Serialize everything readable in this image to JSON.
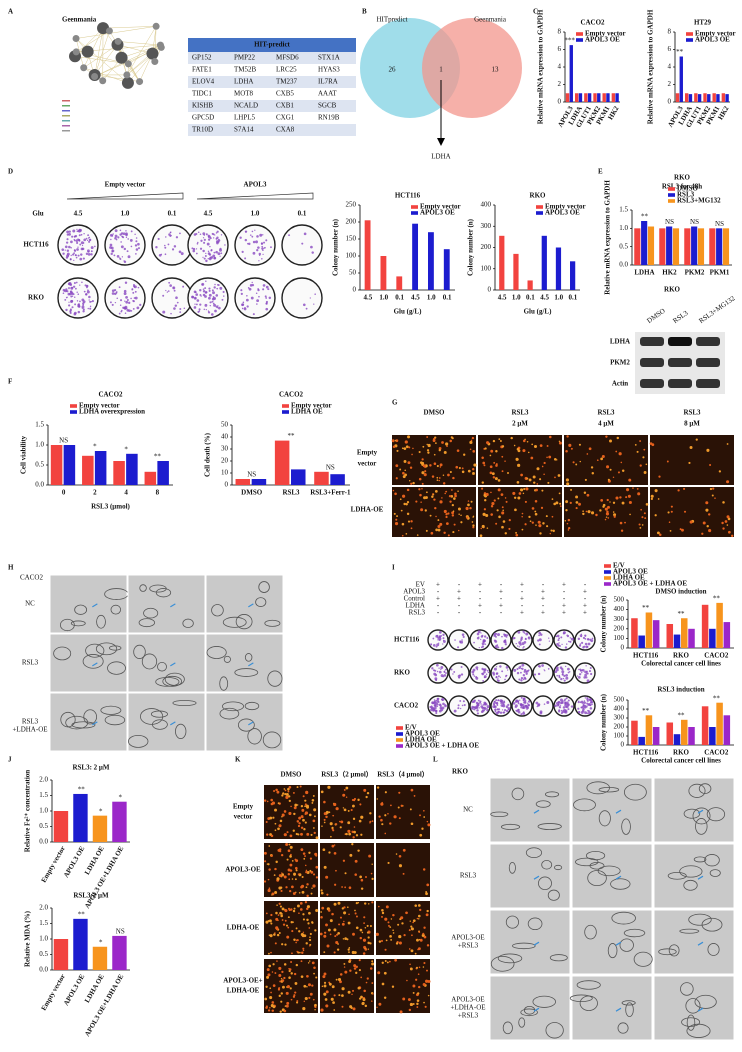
{
  "panel_letters": [
    "A",
    "B",
    "C",
    "D",
    "E",
    "F",
    "G",
    "H",
    "I",
    "J",
    "K",
    "L"
  ],
  "network": {
    "title": "Geenmania"
  },
  "table": {
    "title": "HIT-predict",
    "rows": [
      [
        "GP152",
        "PMP22",
        "MFSD6",
        "STX1A"
      ],
      [
        "FATE1",
        "TM52B",
        "LRC25",
        "HYAS3"
      ],
      [
        "ELOV4",
        "LDHA",
        "TM237",
        "IL7RA"
      ],
      [
        "TIDC1",
        "MOT8",
        "CXB5",
        "AAAT"
      ],
      [
        "KISHB",
        "NCALD",
        "CXB1",
        "SGCB"
      ],
      [
        "GPC5D",
        "LHPL5",
        "CXG1",
        "RN19B"
      ],
      [
        "TR10D",
        "S7A14",
        "CXA8"
      ]
    ]
  },
  "venn": {
    "left_label": "HITpredict",
    "right_label": "Geenmania",
    "left_only": "26",
    "both": "1",
    "right_only": "13",
    "gene": "LDHA"
  },
  "colony_plates": {
    "groups": [
      "Empty vector",
      "APOL3"
    ],
    "glu_label": "Glu",
    "glu_levels": [
      "4.5",
      "1.0",
      "0.1"
    ],
    "cell_lines": [
      "HCT116",
      "RKO"
    ]
  },
  "western_blot": {
    "title": "RKO",
    "lanes": [
      "DMSO",
      "RSL3",
      "RSL3+MG132"
    ],
    "proteins": [
      "LDHA",
      "PKM2",
      "Actin"
    ]
  },
  "fluorescence_g": {
    "columns": [
      [
        "DMSO"
      ],
      [
        "RSL3",
        "2 μM"
      ],
      [
        "RSL3",
        "4 μM"
      ],
      [
        "RSL3",
        "8 μM"
      ]
    ],
    "rows": [
      [
        "Empty",
        "vector"
      ],
      [
        "LDHA-OE"
      ]
    ]
  },
  "em_h": {
    "cell_line": "CACO2",
    "rows": [
      [
        "NC"
      ],
      [
        "RSL3"
      ],
      [
        "RSL3",
        "+LDHA-OE"
      ]
    ]
  },
  "colony_matrix_i": {
    "conditions": [
      {
        "name": "EV",
        "signs": [
          "+",
          "-",
          "+",
          "-",
          "+",
          "-",
          "+",
          "-"
        ]
      },
      {
        "name": "APOL3",
        "signs": [
          "-",
          "+",
          "-",
          "+",
          "-",
          "+",
          "-",
          "+"
        ]
      },
      {
        "name": "Control",
        "signs": [
          "+",
          "+",
          "-",
          "-",
          "+",
          "+",
          "-",
          "-"
        ]
      },
      {
        "name": "LDHA",
        "signs": [
          "-",
          "-",
          "+",
          "+",
          "-",
          "-",
          "+",
          "+"
        ]
      },
      {
        "name": "RSL3",
        "signs": [
          "-",
          "-",
          "-",
          "-",
          "+",
          "+",
          "+",
          "+"
        ]
      }
    ],
    "cell_lines": [
      "HCT116",
      "RKO",
      "CACO2"
    ]
  },
  "fluorescence_k": {
    "columns": [
      "DMSO",
      "RSL3（2 μmol）",
      "RSL3（4 μmol）"
    ],
    "rows": [
      [
        "Empty",
        "vector"
      ],
      [
        "APOL3-OE"
      ],
      [
        "LDHA-OE"
      ],
      [
        "APOL3-OE+",
        "LDHA-OE"
      ]
    ]
  },
  "em_l": {
    "cell_line": "RKO",
    "rows": [
      [
        "NC"
      ],
      [
        "RSL3"
      ],
      [
        "APOL3-OE",
        "+RSL3"
      ],
      [
        "APOL3-OE",
        "+LDHA-OE",
        "+RSL3"
      ]
    ]
  },
  "chart_data": [
    {
      "type": "bar",
      "title": "CACO2",
      "y_label": "Relative mRNA expression to GAPDH",
      "categories": [
        "APOL3",
        "LDHA",
        "GLUT1",
        "PKM2",
        "PKM1",
        "HK2"
      ],
      "series": [
        {
          "name": "Empty vector",
          "color": "#f2433f",
          "values": [
            1,
            1,
            1,
            1,
            1,
            1
          ]
        },
        {
          "name": "APOL3 OE",
          "color": "#1c1ccf",
          "values": [
            6.5,
            1,
            1,
            1,
            1,
            1
          ]
        }
      ],
      "ylim": [
        0,
        8
      ],
      "yticks": [
        0,
        2,
        4,
        6,
        8
      ],
      "annotations": [
        "***",
        null,
        null,
        null,
        null,
        null
      ],
      "legend": "upper right"
    },
    {
      "type": "bar",
      "title": "HT29",
      "y_label": "Relative mRNA expression to GAPDH",
      "categories": [
        "APOL3",
        "LDHA",
        "GLUT1",
        "PKM2",
        "PKM1",
        "HK2"
      ],
      "series": [
        {
          "name": "Empty vector",
          "color": "#f2433f",
          "values": [
            1,
            1,
            1,
            1,
            1,
            1
          ]
        },
        {
          "name": "APOL3 OE",
          "color": "#1c1ccf",
          "values": [
            5.2,
            0.9,
            0.9,
            0.9,
            0.9,
            0.9
          ]
        }
      ],
      "ylim": [
        0,
        8
      ],
      "yticks": [
        0,
        2,
        4,
        6,
        8
      ],
      "annotations": [
        "**",
        null,
        null,
        null,
        null,
        null
      ],
      "legend": "upper right"
    },
    {
      "type": "bar",
      "title": "HCT116",
      "y_label": "Colony number (n)",
      "x_label": "Glu (g/L)",
      "categories": [
        "4.5",
        "1.0",
        "0.1",
        "4.5",
        "1.0",
        "0.1"
      ],
      "series": [
        {
          "name": "Empty vector",
          "color": "#f2433f",
          "values": [
            205,
            100,
            40,
            null,
            null,
            null
          ]
        },
        {
          "name": "APOL3 OE",
          "color": "#1c1ccf",
          "values": [
            null,
            null,
            null,
            195,
            170,
            120
          ]
        }
      ],
      "ylim": [
        0,
        250
      ],
      "yticks": [
        0,
        50,
        100,
        150,
        200,
        250
      ],
      "legend": "upper right"
    },
    {
      "type": "bar",
      "title": "RKO",
      "y_label": "Colony number (n)",
      "x_label": "Glu (g/L)",
      "categories": [
        "4.5",
        "1.0",
        "0.1",
        "4.5",
        "1.0",
        "0.1"
      ],
      "series": [
        {
          "name": "Empty vector",
          "color": "#f2433f",
          "values": [
            255,
            170,
            45,
            null,
            null,
            null
          ]
        },
        {
          "name": "APOL3 OE",
          "color": "#1c1ccf",
          "values": [
            null,
            null,
            null,
            255,
            200,
            135
          ]
        }
      ],
      "ylim": [
        0,
        400
      ],
      "yticks": [
        0,
        100,
        200,
        300,
        400
      ],
      "legend": "upper right"
    },
    {
      "type": "bar",
      "title": "RKO",
      "subtitle": "RSL3 for 48h",
      "y_label": "Relative mRNA expression to GAPDH",
      "categories": [
        "LDHA",
        "HK2",
        "PKM2",
        "PKM1"
      ],
      "series": [
        {
          "name": "DMSO",
          "color": "#f2433f",
          "values": [
            1,
            1,
            1,
            1
          ]
        },
        {
          "name": "RSL3",
          "color": "#1c1ccf",
          "values": [
            1.2,
            1.05,
            1.05,
            1.0
          ]
        },
        {
          "name": "RSL3+MG132",
          "color": "#f7941d",
          "values": [
            1.05,
            1.0,
            1.0,
            1.0
          ]
        }
      ],
      "ylim": [
        0,
        1.5
      ],
      "yticks": [
        {
          "value": 0,
          "label": "0.0"
        },
        {
          "value": 0.5,
          "label": "0.5"
        },
        {
          "value": 1,
          "label": "1.0"
        },
        {
          "value": 1.5,
          "label": "1.5"
        }
      ],
      "annotations": [
        "**",
        "NS",
        "NS",
        "NS"
      ],
      "legend": "upper left"
    },
    {
      "type": "bar",
      "title": "CACO2",
      "y_label": "Cell viability",
      "x_label": "RSL3 (μmol)",
      "categories": [
        "0",
        "2",
        "4",
        "8"
      ],
      "series": [
        {
          "name": "Empty vector",
          "color": "#f2433f",
          "values": [
            1.0,
            0.73,
            0.6,
            0.33
          ]
        },
        {
          "name": "LDHA overexpression",
          "color": "#1c1ccf",
          "values": [
            1.0,
            0.85,
            0.78,
            0.6
          ]
        }
      ],
      "ylim": [
        0,
        1.5
      ],
      "yticks": [
        {
          "value": 0,
          "label": "0.0"
        },
        {
          "value": 0.5,
          "label": "0.5"
        },
        {
          "value": 1,
          "label": "1.0"
        },
        {
          "value": 1.5,
          "label": "1.5"
        }
      ],
      "annotations": [
        "NS",
        "*",
        "*",
        "**"
      ],
      "legend": "upper left"
    },
    {
      "type": "bar",
      "title": "CACO2",
      "y_label": "Cell death (%)",
      "categories": [
        "DMSO",
        "RSL3",
        "RSL3+Ferr-1"
      ],
      "series": [
        {
          "name": "Empty vector",
          "color": "#f2433f",
          "values": [
            5,
            37,
            11
          ]
        },
        {
          "name": "LDHA OE",
          "color": "#1c1ccf",
          "values": [
            5,
            13,
            9
          ]
        }
      ],
      "ylim": [
        0,
        50
      ],
      "yticks": [
        0,
        10,
        20,
        30,
        40,
        50
      ],
      "annotations": [
        "NS",
        "**",
        "NS"
      ],
      "legend": "upper right"
    },
    {
      "type": "bar",
      "title": "DMSO induction",
      "y_label": "Colony number (n)",
      "x_label": "Colorectal cancer cell lines",
      "categories": [
        "HCT116",
        "RKO",
        "CACO2"
      ],
      "series": [
        {
          "name": "E/V",
          "color": "#f2433f",
          "values": [
            310,
            250,
            450
          ]
        },
        {
          "name": "APOL3 OE",
          "color": "#1c1ccf",
          "values": [
            130,
            140,
            200
          ]
        },
        {
          "name": "LDHA OE",
          "color": "#f7941d",
          "values": [
            370,
            310,
            470
          ]
        },
        {
          "name": "APOL3 OE + LDHA OE",
          "color": "#9b27c9",
          "values": [
            290,
            200,
            270
          ]
        }
      ],
      "ylim": [
        0,
        500
      ],
      "yticks": [
        0,
        100,
        200,
        300,
        400,
        500
      ],
      "annotations": [
        "**",
        "**",
        "**"
      ],
      "legend": "upper left"
    },
    {
      "type": "bar",
      "title": "RSL3 induction",
      "y_label": "Colony number (n)",
      "x_label": "Colorectal cancer cell lines",
      "categories": [
        "HCT116",
        "RKO",
        "CACO2"
      ],
      "series": [
        {
          "name": "E/V",
          "color": "#f2433f",
          "values": [
            270,
            250,
            430
          ]
        },
        {
          "name": "APOL3 OE",
          "color": "#1c1ccf",
          "values": [
            90,
            120,
            200
          ]
        },
        {
          "name": "LDHA OE",
          "color": "#f7941d",
          "values": [
            330,
            280,
            470
          ]
        },
        {
          "name": "APOL3 OE + LDHA OE",
          "color": "#9b27c9",
          "values": [
            200,
            200,
            330
          ]
        }
      ],
      "ylim": [
        0,
        500
      ],
      "yticks": [
        0,
        100,
        200,
        300,
        400,
        500
      ],
      "annotations": [
        "**",
        "**",
        "**"
      ],
      "legend": "upper left"
    },
    {
      "type": "bar",
      "title": "RSL3: 2 μM",
      "y_label": "Relative Fe²⁺ concentration",
      "categories": [
        "Empty vector",
        "APOL3 OE",
        "LDHA OE",
        "APOL3 OE+LDHA OE"
      ],
      "values": [
        1.0,
        1.55,
        0.85,
        1.3
      ],
      "colors": [
        "#f2433f",
        "#1c1ccf",
        "#f7941d",
        "#9b27c9"
      ],
      "ylim": [
        0,
        2
      ],
      "yticks": [
        {
          "value": 0,
          "label": "0.0"
        },
        {
          "value": 0.5,
          "label": "0.5"
        },
        {
          "value": 1,
          "label": "1.0"
        },
        {
          "value": 1.5,
          "label": "1.5"
        },
        {
          "value": 2,
          "label": "2.0"
        }
      ],
      "annotations": [
        null,
        "**",
        "*",
        "*"
      ]
    },
    {
      "type": "bar",
      "title": "RSL3:2 μM",
      "y_label": "Relative MDA (%)",
      "categories": [
        "Empty vector",
        "APOL3 OE",
        "LDHA OE",
        "APOL3 OE+LDHA OE"
      ],
      "values": [
        1.0,
        1.65,
        0.75,
        1.1
      ],
      "colors": [
        "#f2433f",
        "#1c1ccf",
        "#f7941d",
        "#9b27c9"
      ],
      "ylim": [
        0,
        2
      ],
      "yticks": [
        {
          "value": 0,
          "label": "0.0"
        },
        {
          "value": 0.5,
          "label": "0.5"
        },
        {
          "value": 1,
          "label": "1.0"
        },
        {
          "value": 1.5,
          "label": "1.5"
        },
        {
          "value": 2,
          "label": "2.0"
        }
      ],
      "annotations": [
        null,
        "**",
        "*",
        "NS"
      ]
    }
  ]
}
